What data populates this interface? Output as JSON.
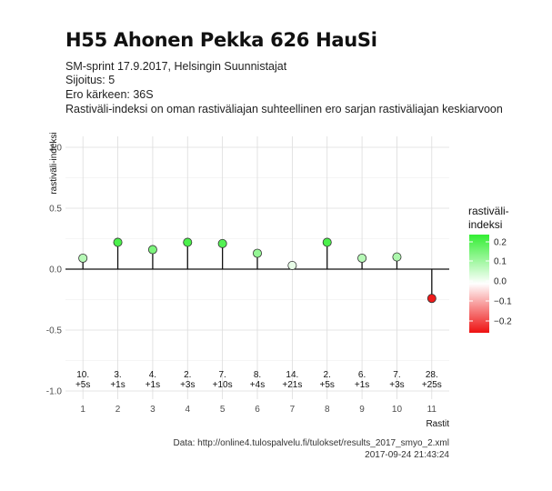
{
  "header": {
    "title": "H55 Ahonen Pekka 626 HauSi",
    "subtitle_lines": [
      "SM-sprint 17.9.2017, Helsingin Suunnistajat",
      "Sijoitus: 5",
      "Ero kärkeen: 36S",
      "Rastiväli-indeksi on oman rastiväliajan suhteellinen ero sarjan rastiväliajan keskiarvoon"
    ]
  },
  "caption": {
    "source": "Data: http://online4.tulospalvelu.fi/tulokset/results_2017_smyo_2.xml",
    "timestamp": "2017-09-24 21:43:24"
  },
  "legend": {
    "title_lines": [
      "rastiväli-",
      "indeksi"
    ],
    "ticks": [
      "0.2",
      "0.1",
      "0.0",
      "−0.1",
      "−0.2"
    ],
    "colors": {
      "high": "#33ee33",
      "mid": "#ffffff",
      "low": "#ee1111"
    }
  },
  "chart_data": {
    "type": "scatter",
    "xlabel": "Rastit",
    "ylabel": "rastiväli-indeksi",
    "x": [
      1,
      2,
      3,
      4,
      5,
      6,
      7,
      8,
      9,
      10,
      11
    ],
    "values": [
      0.09,
      0.22,
      0.16,
      0.22,
      0.21,
      0.13,
      0.03,
      0.22,
      0.09,
      0.1,
      -0.24
    ],
    "annotations": [
      [
        "10.",
        "+5s"
      ],
      [
        "3.",
        "+1s"
      ],
      [
        "4.",
        "+1s"
      ],
      [
        "2.",
        "+3s"
      ],
      [
        "7.",
        "+10s"
      ],
      [
        "8.",
        "+4s"
      ],
      [
        "14.",
        "+21s"
      ],
      [
        "2.",
        "+5s"
      ],
      [
        "6.",
        "+1s"
      ],
      [
        "7.",
        "+3s"
      ],
      [
        "28.",
        "+25s"
      ]
    ],
    "xlim": [
      0.5,
      11.5
    ],
    "ylim": [
      -1.0,
      1.0
    ],
    "yticks": [
      1.0,
      0.5,
      0.0,
      -0.5,
      -1.0
    ],
    "ytick_labels": [
      "1.0",
      "0.5",
      "0.0",
      "-0.5",
      "-1.0"
    ],
    "color_scale": {
      "min": -0.25,
      "max": 0.25
    },
    "grid": true,
    "legend_position": "right"
  }
}
